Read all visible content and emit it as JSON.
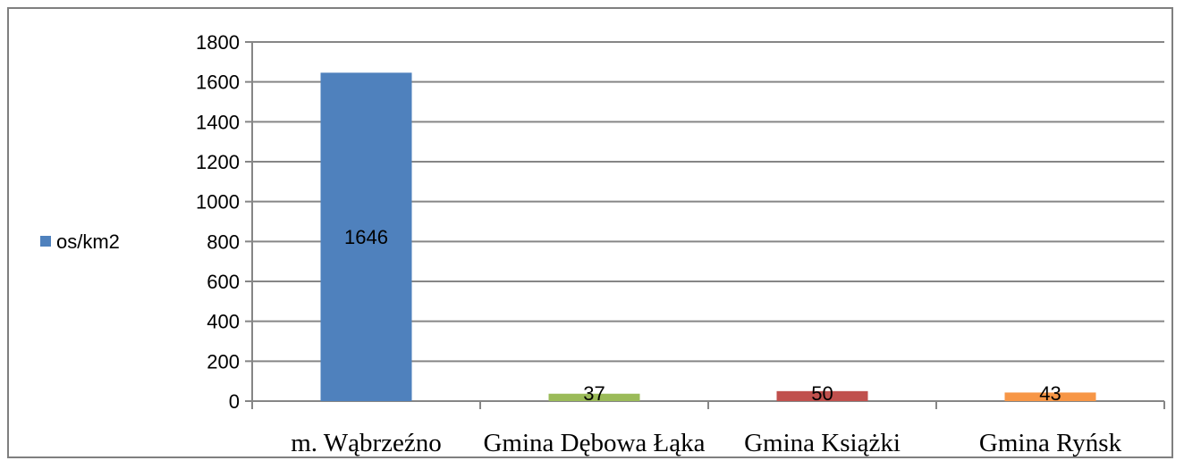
{
  "chart_data": {
    "type": "bar",
    "categories": [
      "m. Wąbrzeźno",
      "Gmina Dębowa Łąka",
      "Gmina Książki",
      "Gmina Ryńsk"
    ],
    "series": [
      {
        "name": "os/km2",
        "values": [
          1646,
          37,
          50,
          43
        ]
      }
    ],
    "bar_colors": [
      "#4f81bd",
      "#9bbb59",
      "#c0504d",
      "#f79646"
    ],
    "data_labels": [
      "1646",
      "37",
      "50",
      "43"
    ],
    "y_ticks": [
      0,
      200,
      400,
      600,
      800,
      1000,
      1200,
      1400,
      1600,
      1800
    ],
    "ylim": [
      0,
      1800
    ],
    "grid": true,
    "legend": {
      "position": "left",
      "label": "os/km2",
      "color": "#4f81bd"
    },
    "title": "",
    "xlabel": "",
    "ylabel": ""
  }
}
